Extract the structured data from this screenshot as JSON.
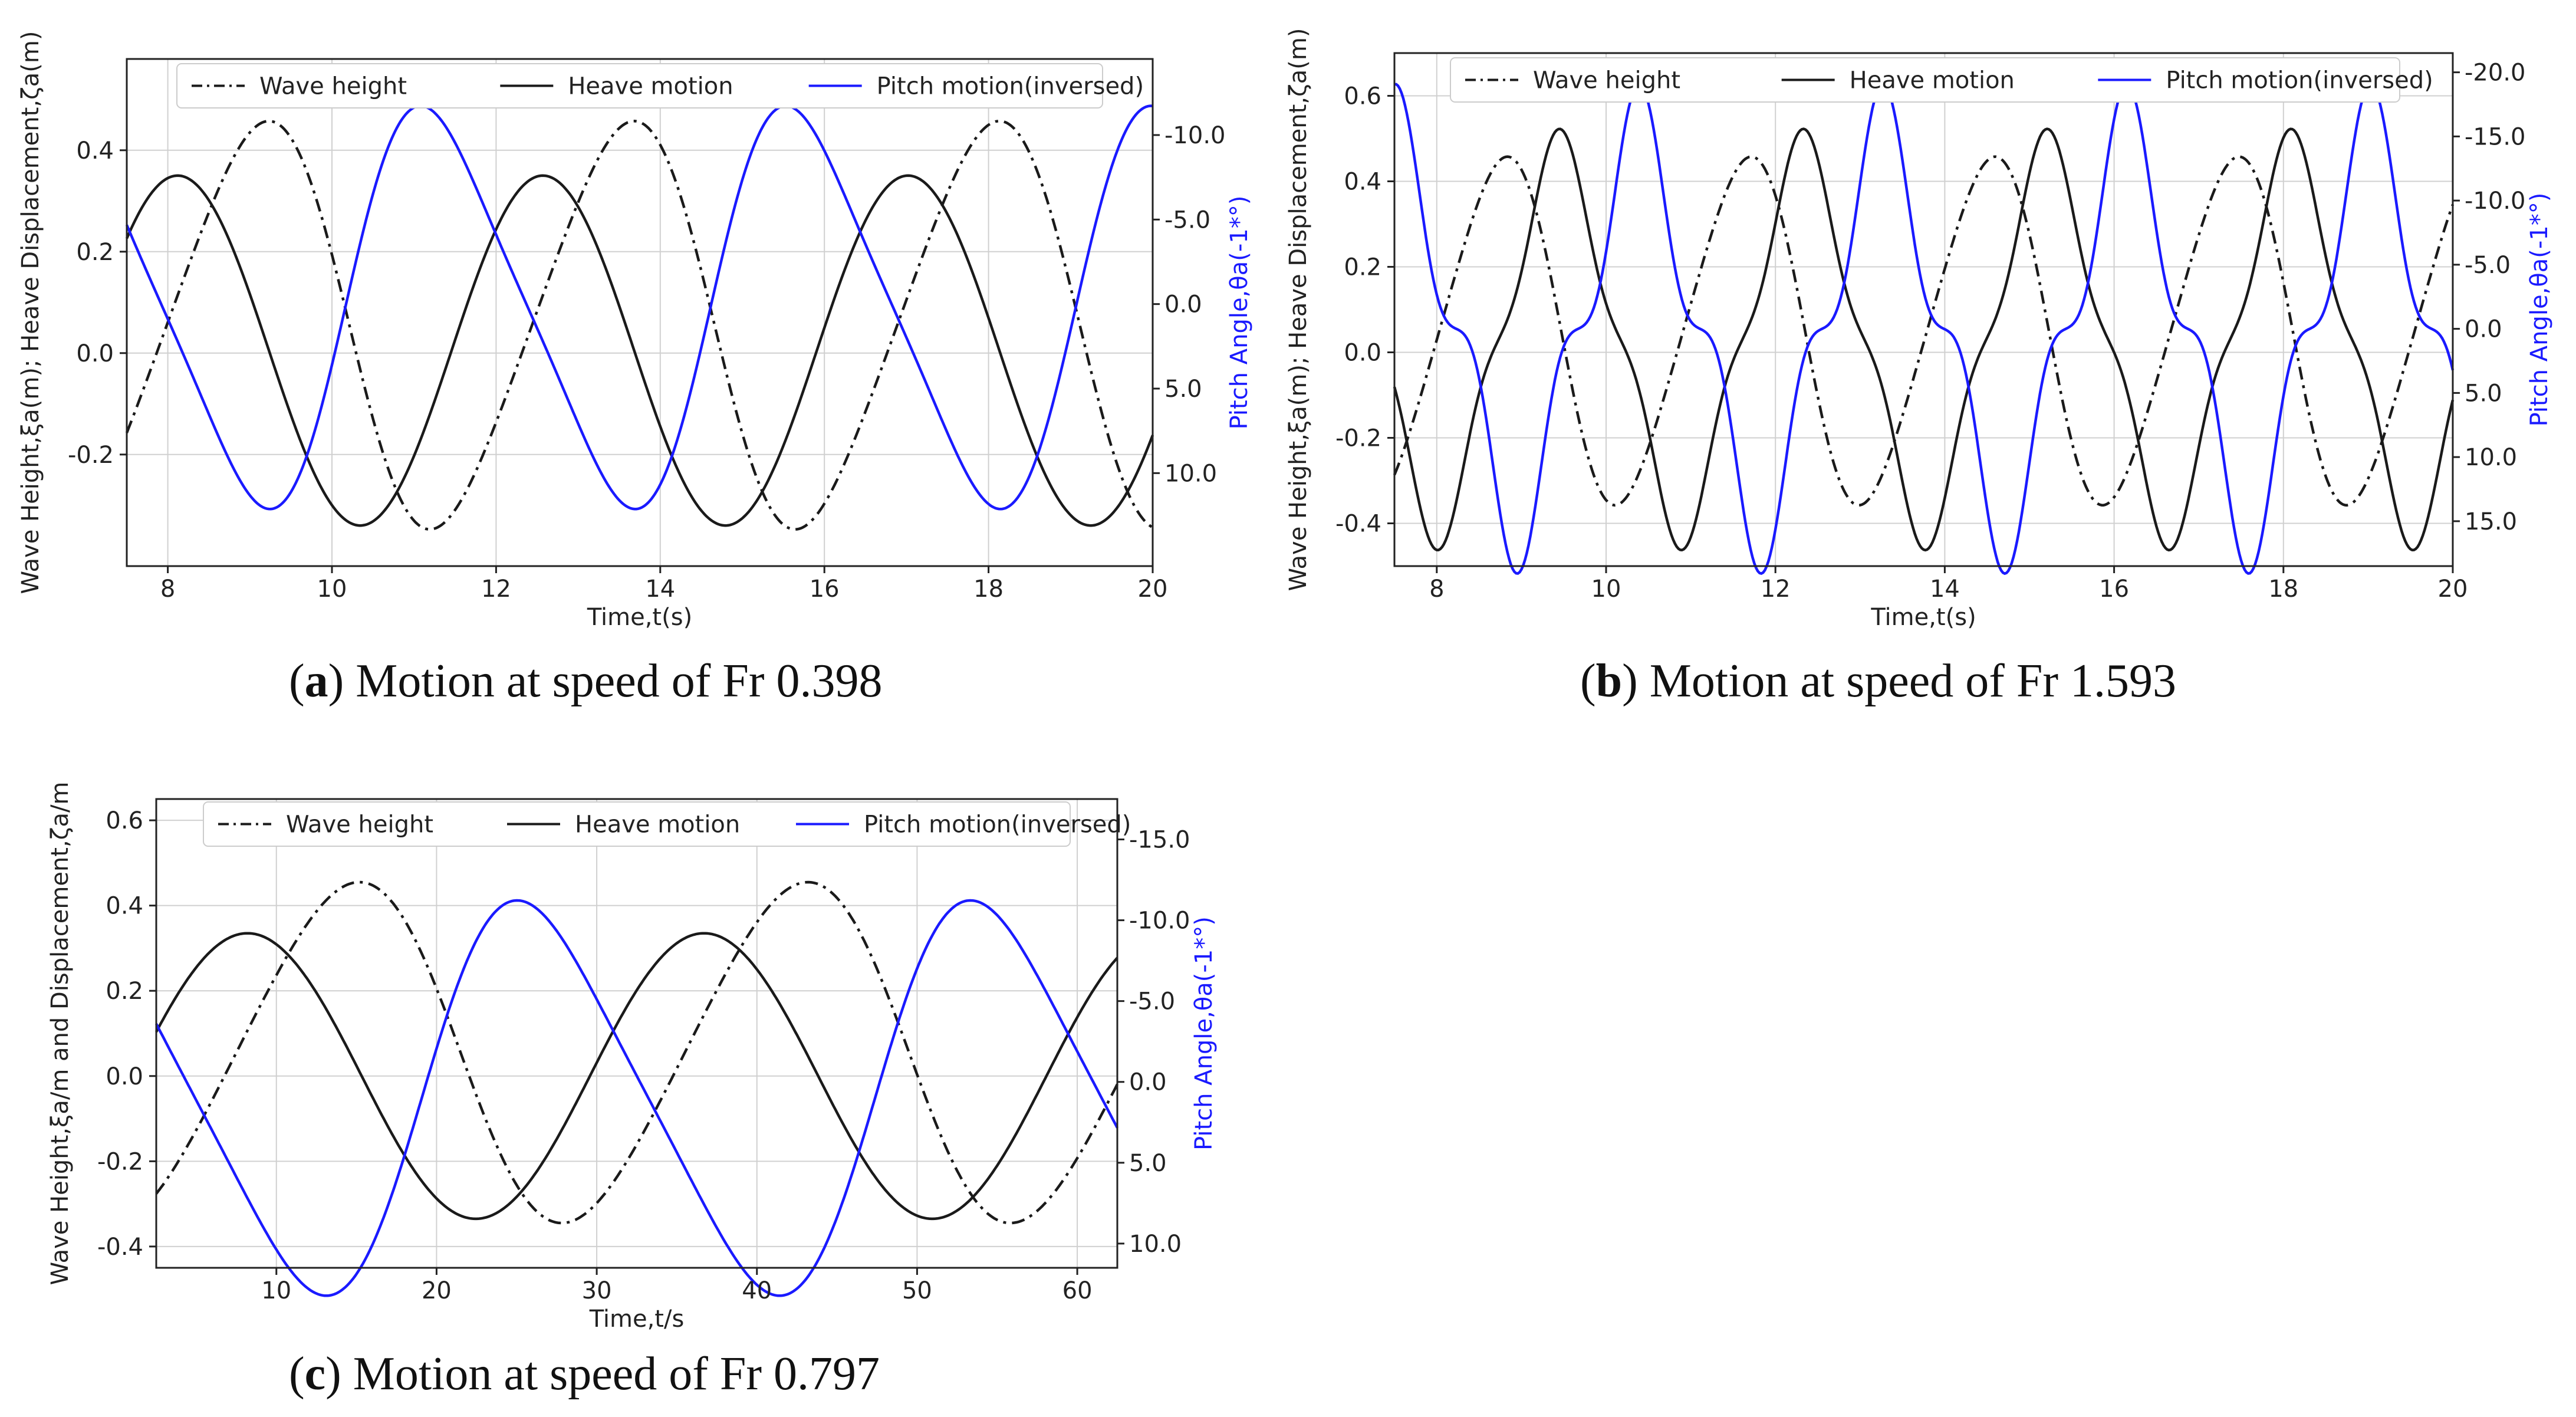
{
  "colors": {
    "wave": "#1a1a1a",
    "heave": "#1a1a1a",
    "pitch": "#1a1aff",
    "grid": "#d0d0d0",
    "axis": "#222222",
    "right_axis": "#1a1aff"
  },
  "legend": {
    "wave": "Wave height",
    "heave": "Heave motion",
    "pitch": "Pitch motion(inversed)"
  },
  "chart_data": [
    {
      "id": "a",
      "type": "line",
      "caption_letter": "a",
      "caption_text": ") Motion at speed of Fr 0.398",
      "xlabel": "Time,t(s)",
      "ylabel": "Wave Height,ξa(m); Heave Displacement,ζa(m)",
      "y2label": "Pitch Angle,θa(-1*°)",
      "xlim": [
        7.5,
        20
      ],
      "ylim": [
        -0.42,
        0.58
      ],
      "y2lim": [
        15.5,
        -14.5
      ],
      "xticks": [
        "8",
        "10",
        "12",
        "14",
        "16",
        "18",
        "20"
      ],
      "yticks": [
        "-0.2",
        "0.0",
        "0.2",
        "0.4"
      ],
      "y2ticks": [
        "-10.0",
        "-5.0",
        "0.0",
        "5.0",
        "10.0"
      ],
      "waves": {
        "wave": {
          "amp": 0.395,
          "offset": 0.055,
          "period": 4.45,
          "phase": 9.1,
          "harm": [
            0.1,
            0.0
          ]
        },
        "heave": {
          "amp": 0.345,
          "offset": 0.005,
          "period": 4.45,
          "phase": 8.12,
          "harm": [
            0.0,
            0.0
          ]
        },
        "pitch": {
          "amp": 11.4,
          "offset": 0.2,
          "period": 4.45,
          "phase": 9.05,
          "harm": [
            0.16,
            0.0
          ]
        }
      }
    },
    {
      "id": "b",
      "type": "line",
      "caption_letter": "b",
      "caption_text": ") Motion at speed of Fr 1.593",
      "xlabel": "Time,t(s)",
      "ylabel": "Wave Height,ξa(m); Heave Displacement,ζa(m)",
      "y2label": "Pitch Angle,θa(-1*°)",
      "xlim": [
        7.5,
        20
      ],
      "ylim": [
        -0.5,
        0.7
      ],
      "y2lim": [
        18.5,
        -21.5
      ],
      "xticks": [
        "8",
        "10",
        "12",
        "14",
        "16",
        "18",
        "20"
      ],
      "yticks": [
        "-0.4",
        "-0.2",
        "0.0",
        "0.2",
        "0.4",
        "0.6"
      ],
      "y2ticks": [
        "-20.0",
        "-15.0",
        "-10.0",
        "-5.0",
        "0.0",
        "5.0",
        "10.0",
        "15.0"
      ],
      "waves": {
        "wave": {
          "amp": 0.4,
          "offset": 0.05,
          "period": 2.88,
          "phase": 8.75,
          "harm": [
            0.1,
            0.0
          ]
        },
        "heave": {
          "amp": 0.44,
          "offset": 0.03,
          "period": 2.88,
          "phase": 9.45,
          "harm": [
            0.0,
            0.18
          ]
        },
        "pitch": {
          "amp": 16.0,
          "offset": 0.0,
          "period": 2.88,
          "phase": 8.95,
          "harm": [
            0.0,
            0.3
          ]
        }
      }
    },
    {
      "id": "c",
      "type": "line",
      "caption_letter": "c",
      "caption_text": ") Motion at speed of Fr 0.797",
      "xlabel": "Time,t/s",
      "ylabel": "Wave Height,ξa/m and Displacement,ζa/m",
      "y2label": "Pitch Angle,θa(-1*°)",
      "xlim": [
        2.5,
        62.5
      ],
      "ylim": [
        -0.45,
        0.65
      ],
      "y2lim": [
        11.5,
        -17.5
      ],
      "xticks": [
        "10",
        "20",
        "30",
        "40",
        "50",
        "60"
      ],
      "yticks": [
        "-0.4",
        "-0.2",
        "0.0",
        "0.2",
        "0.4",
        "0.6"
      ],
      "y2ticks": [
        "-15.0",
        "-10.0",
        "-5.0",
        "0.0",
        "5.0",
        "10.0"
      ],
      "waves": {
        "wave": {
          "amp": 0.395,
          "offset": 0.055,
          "period": 28.0,
          "phase": 14.5,
          "harm": [
            0.08,
            0.0
          ]
        },
        "heave": {
          "amp": 0.335,
          "offset": 0.0,
          "period": 28.5,
          "phase": 8.2,
          "harm": [
            0.0,
            0.0
          ]
        },
        "pitch": {
          "amp": 11.8,
          "offset": 1.0,
          "period": 28.3,
          "phase": 12.0,
          "harm": [
            0.14,
            0.0
          ]
        }
      }
    }
  ]
}
